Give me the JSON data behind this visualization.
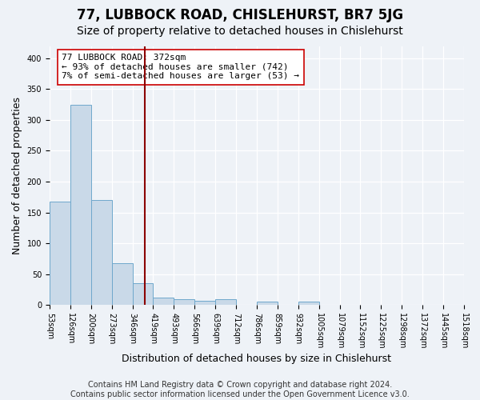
{
  "title": "77, LUBBOCK ROAD, CHISLEHURST, BR7 5JG",
  "subtitle": "Size of property relative to detached houses in Chislehurst",
  "xlabel": "Distribution of detached houses by size in Chislehurst",
  "ylabel": "Number of detached properties",
  "bin_labels": [
    "53sqm",
    "126sqm",
    "200sqm",
    "273sqm",
    "346sqm",
    "419sqm",
    "493sqm",
    "566sqm",
    "639sqm",
    "712sqm",
    "786sqm",
    "859sqm",
    "932sqm",
    "1005sqm",
    "1079sqm",
    "1152sqm",
    "1225sqm",
    "1298sqm",
    "1372sqm",
    "1445sqm",
    "1518sqm"
  ],
  "bar_heights": [
    168,
    325,
    170,
    68,
    35,
    12,
    9,
    6,
    9,
    0,
    5,
    0,
    5,
    0,
    0,
    0,
    0,
    0,
    0,
    0
  ],
  "bar_color": "#c9d9e8",
  "bar_edge_color": "#6fa8cc",
  "ylim": [
    0,
    420
  ],
  "yticks": [
    0,
    50,
    100,
    150,
    200,
    250,
    300,
    350,
    400
  ],
  "vline_x": 4.6,
  "annotation_line1": "77 LUBBOCK ROAD: 372sqm",
  "annotation_line2": "← 93% of detached houses are smaller (742)",
  "annotation_line3": "7% of semi-detached houses are larger (53) →",
  "footer_line1": "Contains HM Land Registry data © Crown copyright and database right 2024.",
  "footer_line2": "Contains public sector information licensed under the Open Government Licence v3.0.",
  "background_color": "#eef2f7",
  "grid_color": "#ffffff",
  "bar_edge_linewidth": 0.7,
  "vline_color": "#8b0000",
  "vline_linewidth": 1.5,
  "title_fontsize": 12,
  "subtitle_fontsize": 10,
  "ylabel_fontsize": 9,
  "xlabel_fontsize": 9,
  "annotation_fontsize": 8,
  "footer_fontsize": 7,
  "tick_fontsize": 7
}
